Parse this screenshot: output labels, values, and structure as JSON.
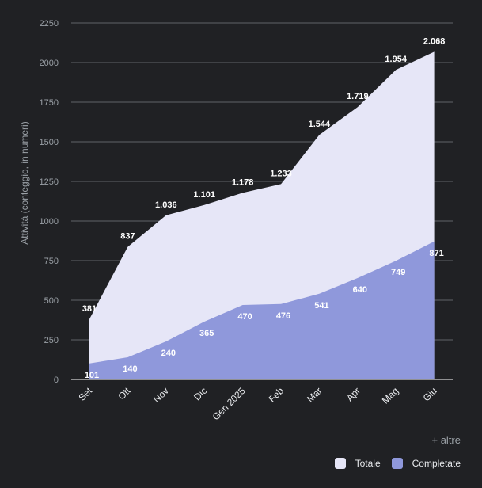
{
  "chart_data": {
    "type": "area",
    "ylabel": "Attività (conteggio, in numeri)",
    "ylim": [
      0,
      2250
    ],
    "yticks": [
      0,
      250,
      500,
      750,
      1000,
      1250,
      1500,
      1750,
      2000,
      2250
    ],
    "grid": true,
    "categories": [
      "Set",
      "Ott",
      "Nov",
      "Dic",
      "Gen 2025",
      "Feb",
      "Mar",
      "Apr",
      "Mag",
      "Giu"
    ],
    "series": [
      {
        "name": "Totale",
        "color": "#e6e6f7",
        "values": [
          381,
          837,
          1036,
          1101,
          1178,
          1233,
          1544,
          1719,
          1954,
          2068
        ],
        "labels": [
          "381",
          "837",
          "1.036",
          "1.101",
          "1.178",
          "1.233",
          "1.544",
          "1.719",
          "1.954",
          "2.068"
        ]
      },
      {
        "name": "Completate",
        "color": "#8f98db",
        "values": [
          101,
          140,
          240,
          365,
          470,
          476,
          541,
          640,
          749,
          871
        ],
        "labels": [
          "101",
          "140",
          "240",
          "365",
          "470",
          "476",
          "541",
          "640",
          "749",
          "871"
        ]
      }
    ],
    "legend_position": "bottom-right"
  },
  "more_link": "+ altre"
}
